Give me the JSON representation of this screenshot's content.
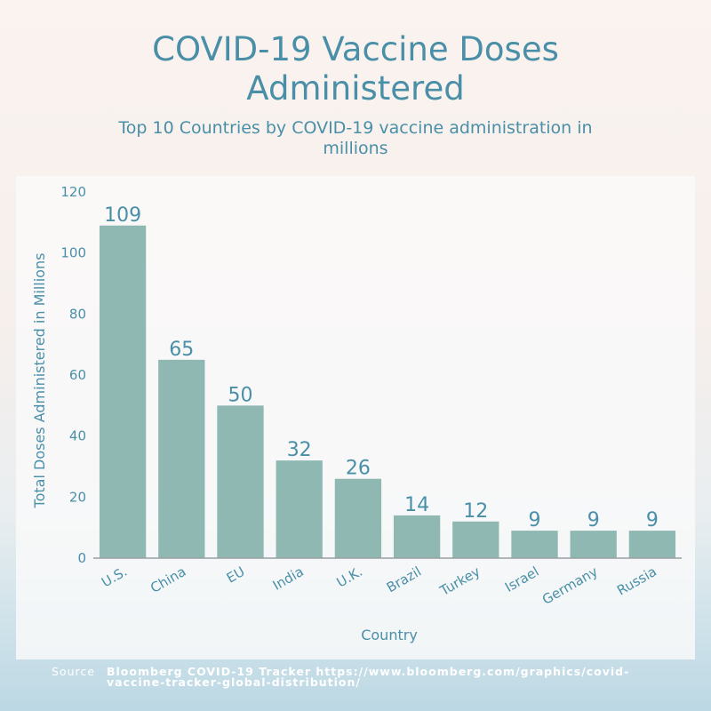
{
  "title_line1": "COVID-19 Vaccine Doses",
  "title_line2": "Administered",
  "subtitle": "Top 10 Countries by COVID-19 vaccine administration in millions",
  "source_label": "Source",
  "source_text": "Bloomberg COVID-19 Tracker https://www.bloomberg.com/graphics/covid-vaccine-tracker-global-distribution/",
  "colors": {
    "bar": "#8fb8b2",
    "text": "#4a8fa8",
    "axis": "#9aa0a3"
  },
  "chart_data": {
    "type": "bar",
    "title": "COVID-19 Vaccine Doses Administered",
    "subtitle": "Top 10 Countries by COVID-19 vaccine administration in millions",
    "xlabel": "Country",
    "ylabel": "Total Doses Administered in Millions",
    "categories": [
      "U.S.",
      "China",
      "EU",
      "India",
      "U.K.",
      "Brazil",
      "Turkey",
      "Israel",
      "Germany",
      "Russia"
    ],
    "values": [
      109,
      65,
      50,
      32,
      26,
      14,
      12,
      9,
      9,
      9
    ],
    "ylim": [
      0,
      120
    ],
    "yticks": [
      0,
      20,
      40,
      60,
      80,
      100,
      120
    ],
    "grid": false,
    "data_labels": true
  }
}
